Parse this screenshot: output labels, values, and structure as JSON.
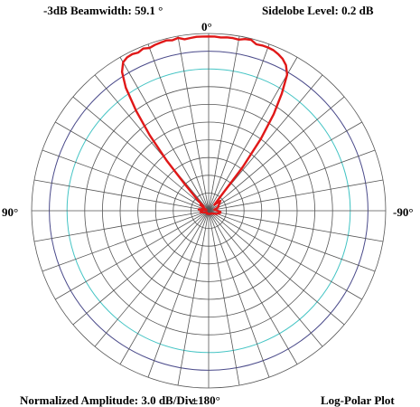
{
  "header": {
    "beamwidth_label": "-3dB Beamwidth: 59.1 °",
    "sidelobe_label": "Sidelobe Level: 0.2 dB"
  },
  "angle_labels": {
    "top": "0°",
    "left": "90°",
    "right": "-90°",
    "bottom": "±180°"
  },
  "footer": {
    "amplitude_label": "Normalized Amplitude: 3.0 dB/Div",
    "plot_type_label": "Log-Polar Plot"
  },
  "colors": {
    "grid": "#555555",
    "ring_inner_accent": "#44c4c4",
    "ring_outer_accent": "#4a4a8a",
    "trace": "#e01818"
  },
  "chart_data": {
    "type": "polar",
    "scale": "log-polar",
    "radial_unit": "dB",
    "db_per_division": 3.0,
    "divisions": 10,
    "angle_step_deg": 10,
    "accent_rings_db": [
      -6,
      -3
    ],
    "grid": true,
    "series": [
      {
        "angles_deg": [
          -180,
          -160,
          -140,
          -110,
          -100,
          -95,
          -88,
          -80,
          -70,
          -60,
          -50,
          -44,
          -40,
          -38,
          -36,
          -34,
          -32,
          -30,
          -28,
          -26,
          -24,
          -22,
          -20,
          -18,
          -16,
          -14,
          -12,
          -10,
          -8,
          -6,
          -4,
          -2,
          0,
          2,
          4,
          6,
          8,
          10,
          12,
          14,
          16,
          18,
          20,
          22,
          24,
          26,
          28,
          30,
          32,
          34,
          36,
          38,
          40,
          42,
          46,
          50,
          55,
          60,
          70,
          78,
          82,
          88,
          95,
          100,
          110,
          130,
          150,
          170,
          180
        ],
        "amplitude_db": [
          -29.5,
          -29.4,
          -29.4,
          -28.5,
          -28.0,
          -28.0,
          -28.6,
          -29.0,
          -28.3,
          -28.0,
          -27.4,
          -28.6,
          -27.0,
          -20.6,
          -14.9,
          -10.3,
          -6.6,
          -3.4,
          -2.1,
          -1.4,
          -1.0,
          -0.7,
          -0.6,
          -0.6,
          -0.7,
          -0.2,
          -0.3,
          -0.6,
          -0.5,
          -0.5,
          -0.6,
          -0.5,
          -0.5,
          -0.5,
          -0.5,
          -0.6,
          -0.7,
          -0.3,
          -0.5,
          -0.3,
          -0.4,
          -0.5,
          -0.7,
          -0.4,
          -0.7,
          -0.5,
          -0.6,
          -1.0,
          -2.3,
          -4.9,
          -9.1,
          -13.8,
          -19.0,
          -24.0,
          -27.6,
          -28.9,
          -28.3,
          -28.9,
          -29.6,
          -28.9,
          -28.3,
          -28.9,
          -28.9,
          -28.6,
          -29.2,
          -29.6,
          -29.4,
          -29.5,
          -29.5
        ]
      }
    ]
  }
}
